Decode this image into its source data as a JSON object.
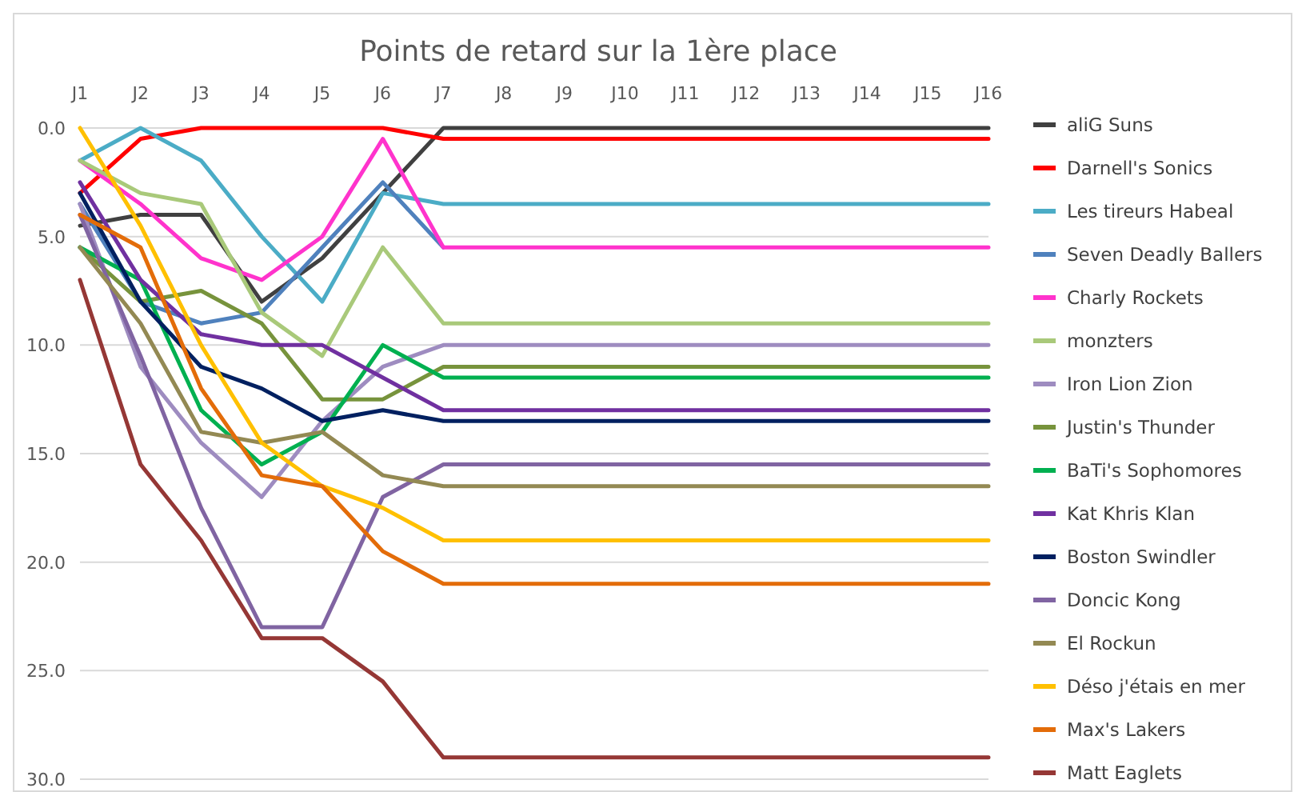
{
  "chart_data": {
    "type": "line",
    "title": "Points de retard sur la 1ère place",
    "categories": [
      "J1",
      "J2",
      "J3",
      "J4",
      "J5",
      "J6",
      "J7",
      "J8",
      "J9",
      "J10",
      "J11",
      "J12",
      "J13",
      "J14",
      "J15",
      "J16"
    ],
    "ylim": [
      30,
      0
    ],
    "yticks": [
      {
        "value": 0,
        "label": "0.0"
      },
      {
        "value": 5,
        "label": "5.0"
      },
      {
        "value": 10,
        "label": "10.0"
      },
      {
        "value": 15,
        "label": "15.0"
      },
      {
        "value": 20,
        "label": "20.0"
      },
      {
        "value": 25,
        "label": "25.0"
      },
      {
        "value": 30,
        "label": "30.0"
      }
    ],
    "grid": "y",
    "legend": "right",
    "marker": "none",
    "line_style": "solid",
    "series": [
      {
        "name": "aliG Suns",
        "color": "#404040",
        "values": [
          4.5,
          4,
          4,
          8,
          6,
          3,
          0,
          0,
          0,
          0,
          0,
          0,
          0,
          0,
          0,
          0
        ]
      },
      {
        "name": "Darnell's Sonics",
        "color": "#ff0000",
        "values": [
          3,
          0.5,
          0,
          0,
          0,
          0,
          0.5,
          0.5,
          0.5,
          0.5,
          0.5,
          0.5,
          0.5,
          0.5,
          0.5,
          0.5
        ]
      },
      {
        "name": "Les tireurs Habeal",
        "color": "#4bacc6",
        "values": [
          1.5,
          0,
          1.5,
          5,
          8,
          3,
          3.5,
          3.5,
          3.5,
          3.5,
          3.5,
          3.5,
          3.5,
          3.5,
          3.5,
          3.5
        ]
      },
      {
        "name": "Seven Deadly Ballers",
        "color": "#4f81bd",
        "values": [
          3.5,
          8,
          9,
          8.5,
          5.5,
          2.5,
          5.5,
          null,
          null,
          null,
          null,
          null,
          null,
          null,
          null,
          null
        ]
      },
      {
        "name": "Charly Rockets",
        "color": "#ff33cc",
        "values": [
          1.5,
          3.5,
          6,
          7,
          5,
          0.5,
          5.5,
          5.5,
          5.5,
          5.5,
          5.5,
          5.5,
          5.5,
          5.5,
          5.5,
          5.5
        ]
      },
      {
        "name": "monzters",
        "color": "#a9c97a",
        "values": [
          1.5,
          3,
          3.5,
          8.5,
          10.5,
          5.5,
          9,
          9,
          9,
          9,
          9,
          9,
          9,
          9,
          9,
          9
        ]
      },
      {
        "name": "Iron Lion Zion",
        "color": "#9e8cc0",
        "values": [
          3.5,
          11,
          14.5,
          17,
          13.5,
          11,
          10,
          10,
          10,
          10,
          10,
          10,
          10,
          10,
          10,
          10
        ]
      },
      {
        "name": "Justin's Thunder",
        "color": "#77933c",
        "values": [
          5.5,
          8,
          7.5,
          9,
          12.5,
          12.5,
          11,
          11,
          11,
          11,
          11,
          11,
          11,
          11,
          11,
          11
        ]
      },
      {
        "name": "BaTi's Sophomores",
        "color": "#00b050",
        "values": [
          5.5,
          7,
          13,
          15.5,
          14,
          10,
          11.5,
          11.5,
          11.5,
          11.5,
          11.5,
          11.5,
          11.5,
          11.5,
          11.5,
          11.5
        ]
      },
      {
        "name": "Kat Khris Klan",
        "color": "#7030a0",
        "values": [
          2.5,
          7,
          9.5,
          10,
          10,
          11.5,
          13,
          13,
          13,
          13,
          13,
          13,
          13,
          13,
          13,
          13
        ]
      },
      {
        "name": "Boston Swindler",
        "color": "#002060",
        "values": [
          3,
          8,
          11,
          12,
          13.5,
          13,
          13.5,
          13.5,
          13.5,
          13.5,
          13.5,
          13.5,
          13.5,
          13.5,
          13.5,
          13.5
        ]
      },
      {
        "name": "Doncic Kong",
        "color": "#8064a2",
        "values": [
          4,
          10.5,
          17.5,
          23,
          23,
          17,
          15.5,
          15.5,
          15.5,
          15.5,
          15.5,
          15.5,
          15.5,
          15.5,
          15.5,
          15.5
        ]
      },
      {
        "name": "El Rockun",
        "color": "#938953",
        "values": [
          5.5,
          9,
          14,
          14.5,
          14,
          16,
          16.5,
          16.5,
          16.5,
          16.5,
          16.5,
          16.5,
          16.5,
          16.5,
          16.5,
          16.5
        ]
      },
      {
        "name": "Déso j'étais en mer",
        "color": "#ffc000",
        "values": [
          0,
          4.5,
          10,
          14.5,
          16.5,
          17.5,
          19,
          19,
          19,
          19,
          19,
          19,
          19,
          19,
          19,
          19
        ]
      },
      {
        "name": "Max's Lakers",
        "color": "#e36c09",
        "values": [
          4,
          5.5,
          12,
          16,
          16.5,
          19.5,
          21,
          21,
          21,
          21,
          21,
          21,
          21,
          21,
          21,
          21
        ]
      },
      {
        "name": "Matt Eaglets",
        "color": "#953735",
        "values": [
          7,
          15.5,
          19,
          23.5,
          23.5,
          25.5,
          29,
          29,
          29,
          29,
          29,
          29,
          29,
          29,
          29,
          29
        ]
      }
    ]
  }
}
